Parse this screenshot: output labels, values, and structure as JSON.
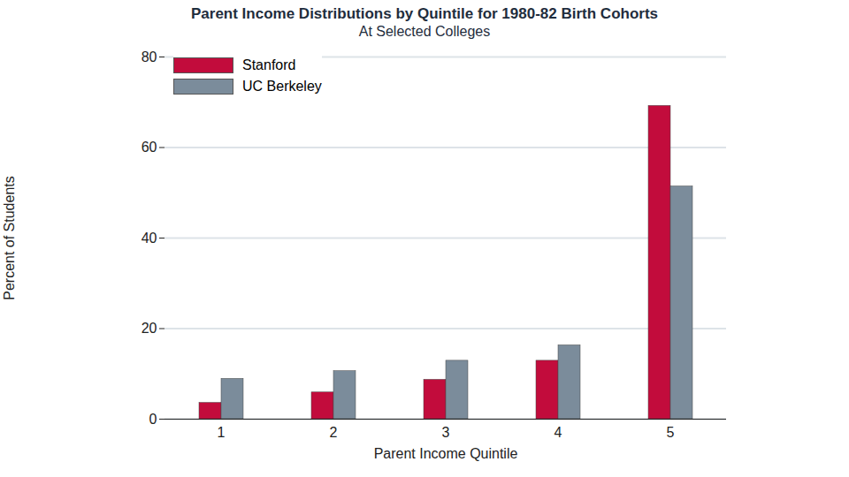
{
  "chart_data": {
    "type": "bar",
    "title": "Parent Income Distributions by Quintile for 1980-82 Birth Cohorts",
    "subtitle": "At Selected Colleges",
    "x_label": "Parent Income Quintile",
    "y_label": "Percent of Students",
    "categories": [
      "1",
      "2",
      "3",
      "4",
      "5"
    ],
    "series": [
      {
        "name": "Stanford",
        "color": "#c20c3c",
        "values": [
          3.6,
          5.9,
          8.7,
          12.9,
          69.2
        ]
      },
      {
        "name": "UC Berkeley",
        "color": "#7b8c9b",
        "values": [
          8.9,
          10.6,
          12.9,
          16.3,
          51.4
        ]
      }
    ],
    "ylim": [
      0,
      80
    ],
    "yticks": [
      0,
      20,
      40,
      60,
      80
    ],
    "grid": true,
    "legend": "top-left"
  }
}
